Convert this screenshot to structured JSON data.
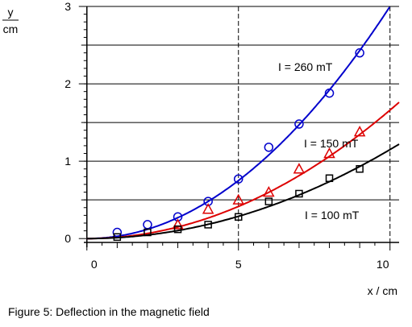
{
  "chart_data": {
    "type": "scatter",
    "title": "",
    "xlabel": "x / cm",
    "ylabel_num": "y",
    "ylabel_den": "cm",
    "xlim": [
      -0.1,
      10.3
    ],
    "ylim": [
      -0.05,
      3.0
    ],
    "x_ticks": [
      "0",
      "5",
      "10"
    ],
    "y_ticks": [
      "0",
      "1",
      "2",
      "3"
    ],
    "grid": true,
    "series": [
      {
        "name": "I = 260 mT",
        "color": "#0000cc",
        "marker": "circle",
        "x": [
          1,
          2,
          3,
          4,
          5,
          6,
          7,
          8,
          9
        ],
        "y": [
          0.08,
          0.18,
          0.28,
          0.48,
          0.77,
          1.18,
          1.48,
          1.88,
          2.4
        ],
        "fit_coef": 0.03
      },
      {
        "name": "I = 150 mT",
        "color": "#dd0000",
        "marker": "triangle",
        "x": [
          3,
          4,
          5,
          6,
          7,
          8,
          9
        ],
        "y": [
          0.18,
          0.38,
          0.5,
          0.6,
          0.9,
          1.1,
          1.38
        ],
        "fit_coef": 0.0166
      },
      {
        "name": "I = 100 mT",
        "color": "#000000",
        "marker": "square",
        "x": [
          1,
          2,
          3,
          4,
          5,
          6,
          7,
          8,
          9
        ],
        "y": [
          0.02,
          0.08,
          0.12,
          0.18,
          0.28,
          0.48,
          0.58,
          0.78,
          0.9
        ],
        "fit_coef": 0.0115
      }
    ]
  },
  "caption": "Figure 5: Deflection in the magnetic field"
}
